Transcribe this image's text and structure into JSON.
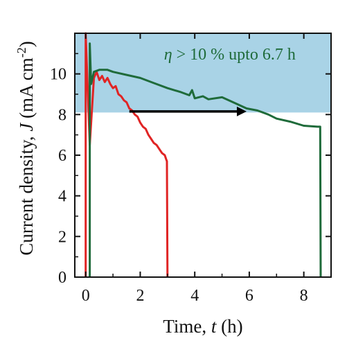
{
  "chart_data": {
    "type": "line",
    "xlabel": {
      "pre": "Time, ",
      "var": "t",
      "post": " (h)"
    },
    "ylabel": {
      "pre": "Current density, ",
      "var": "J",
      "post": " (mA cm",
      "sup": "-2",
      "close": ")"
    },
    "xlim": [
      -0.4,
      9.0
    ],
    "ylim": [
      0,
      12
    ],
    "x_ticks": [
      "0",
      "2",
      "4",
      "6",
      "8"
    ],
    "y_ticks": [
      "0",
      "2",
      "4",
      "6",
      "8",
      "10"
    ],
    "grid": false,
    "shaded_region": {
      "y_from": 8.1,
      "y_to": 12,
      "color": "#a9d3e6"
    },
    "annotation": {
      "eta": "η",
      "text": " > 10 % upto 6.7 h",
      "x": 7.7,
      "y": 10.7,
      "color": "#1f6b3a"
    },
    "arrow": {
      "x_from": 1.6,
      "x_to": 5.9,
      "y": 8.15,
      "color": "#000000"
    },
    "series": [
      {
        "color": "#e02424",
        "points": [
          [
            0.0,
            0
          ],
          [
            0.0,
            12
          ],
          [
            0.15,
            6.5
          ],
          [
            0.3,
            9.8
          ],
          [
            0.4,
            10.1
          ],
          [
            0.5,
            9.7
          ],
          [
            0.6,
            9.9
          ],
          [
            0.7,
            9.6
          ],
          [
            0.8,
            9.8
          ],
          [
            0.9,
            9.5
          ],
          [
            1.0,
            9.3
          ],
          [
            1.1,
            9.4
          ],
          [
            1.2,
            9.0
          ],
          [
            1.3,
            8.9
          ],
          [
            1.4,
            8.7
          ],
          [
            1.5,
            8.6
          ],
          [
            1.6,
            8.3
          ],
          [
            1.7,
            8.2
          ],
          [
            1.8,
            8.0
          ],
          [
            1.9,
            7.9
          ],
          [
            2.0,
            7.6
          ],
          [
            2.1,
            7.4
          ],
          [
            2.2,
            7.3
          ],
          [
            2.3,
            7.0
          ],
          [
            2.4,
            6.8
          ],
          [
            2.5,
            6.6
          ],
          [
            2.6,
            6.5
          ],
          [
            2.7,
            6.3
          ],
          [
            2.8,
            6.1
          ],
          [
            2.9,
            6.0
          ],
          [
            2.95,
            5.8
          ],
          [
            2.98,
            5.7
          ],
          [
            3.0,
            0
          ]
        ]
      },
      {
        "color": "#1f6b3a",
        "points": [
          [
            0.15,
            0
          ],
          [
            0.15,
            11.5
          ],
          [
            0.2,
            9.5
          ],
          [
            0.3,
            10.1
          ],
          [
            0.5,
            10.2
          ],
          [
            0.8,
            10.2
          ],
          [
            1.0,
            10.1
          ],
          [
            1.5,
            9.95
          ],
          [
            2.0,
            9.8
          ],
          [
            2.5,
            9.55
          ],
          [
            3.0,
            9.3
          ],
          [
            3.5,
            9.1
          ],
          [
            3.8,
            8.95
          ],
          [
            3.9,
            9.2
          ],
          [
            4.0,
            8.8
          ],
          [
            4.3,
            8.9
          ],
          [
            4.5,
            8.75
          ],
          [
            5.0,
            8.85
          ],
          [
            5.5,
            8.55
          ],
          [
            5.9,
            8.3
          ],
          [
            6.3,
            8.2
          ],
          [
            6.7,
            8.0
          ],
          [
            7.0,
            7.8
          ],
          [
            7.5,
            7.65
          ],
          [
            8.0,
            7.45
          ],
          [
            8.5,
            7.4
          ],
          [
            8.6,
            7.4
          ],
          [
            8.62,
            0
          ]
        ]
      }
    ]
  }
}
